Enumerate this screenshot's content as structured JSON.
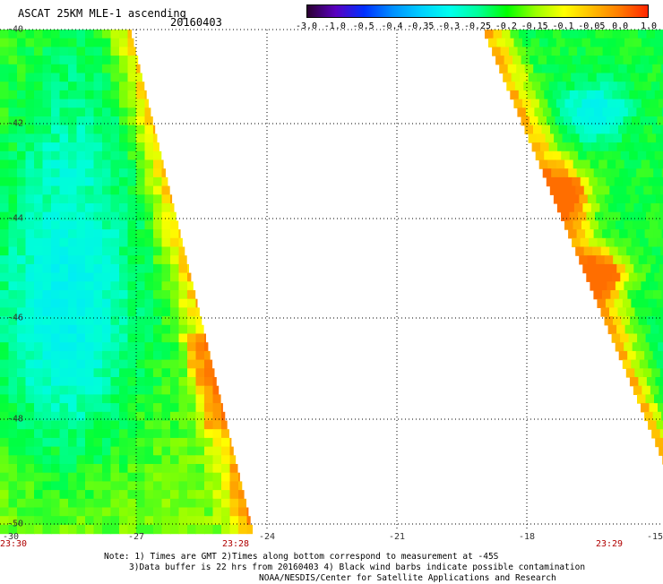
{
  "header": {
    "title": "ASCAT 25KM MLE-1 ascending",
    "date": "20160403"
  },
  "colorbar": {
    "labels": [
      "-3.0",
      "-1.0",
      "-0.5",
      "-0.4",
      "-0.35",
      "-0.3",
      "-0.25",
      "-0.2",
      "-0.15",
      "-0.1",
      "-0.05",
      "0.0",
      "1.0"
    ],
    "colors": [
      "#2a0030",
      "#5a00c0",
      "#0030ff",
      "#0090ff",
      "#00d0ff",
      "#00ffee",
      "#00ff99",
      "#00ff00",
      "#99ff00",
      "#ffff00",
      "#ffbb00",
      "#ff7700",
      "#ff2000"
    ]
  },
  "axes": {
    "y_ticks": [
      "-40",
      "-42",
      "-44",
      "-46",
      "-48",
      "-50"
    ],
    "x_ticks": [
      "-30",
      "-27",
      "-24",
      "-21",
      "-18",
      "-15"
    ],
    "time_labels": [
      "23:30",
      "23:28",
      "23:29"
    ]
  },
  "notes": {
    "line1": "Note: 1) Times are GMT 2)Times along bottom correspond to measurement at -45S",
    "line2": "3)Data buffer is 22 hrs from 20160403 4) Black wind barbs indicate possible contamination",
    "line3": "NOAA/NESDIS/Center for Satellite Applications and Research"
  }
}
